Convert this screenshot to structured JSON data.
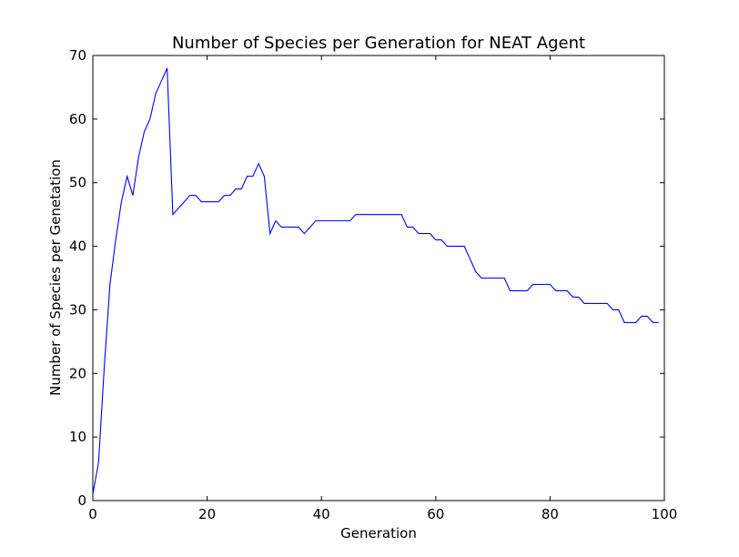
{
  "chart_data": {
    "type": "line",
    "title": "Number of Species per Generation for NEAT Agent",
    "xlabel": "Generation",
    "ylabel": "Number of Species per Genetation",
    "xlim": [
      0,
      100
    ],
    "ylim": [
      0,
      70
    ],
    "xticks": [
      0,
      20,
      40,
      60,
      80,
      100
    ],
    "yticks": [
      0,
      10,
      20,
      30,
      40,
      50,
      60,
      70
    ],
    "grid": false,
    "series": [
      {
        "color": "#0000ff",
        "x": [
          0,
          1,
          2,
          3,
          4,
          5,
          6,
          7,
          8,
          9,
          10,
          11,
          12,
          13,
          14,
          15,
          16,
          17,
          18,
          19,
          20,
          21,
          22,
          23,
          24,
          25,
          26,
          27,
          28,
          29,
          30,
          31,
          32,
          33,
          34,
          35,
          36,
          37,
          38,
          39,
          40,
          41,
          42,
          43,
          44,
          45,
          46,
          47,
          48,
          49,
          50,
          51,
          52,
          53,
          54,
          55,
          56,
          57,
          58,
          59,
          60,
          61,
          62,
          63,
          64,
          65,
          66,
          67,
          68,
          69,
          70,
          71,
          72,
          73,
          74,
          75,
          76,
          77,
          78,
          79,
          80,
          81,
          82,
          83,
          84,
          85,
          86,
          87,
          88,
          89,
          90,
          91,
          92,
          93,
          94,
          95,
          96,
          97,
          98,
          99
        ],
        "y": [
          1,
          6,
          21,
          34,
          41,
          47,
          51,
          48,
          54,
          58,
          60,
          64,
          66,
          68,
          45,
          46,
          47,
          48,
          48,
          47,
          47,
          47,
          47,
          48,
          48,
          49,
          49,
          51,
          51,
          53,
          51,
          42,
          44,
          43,
          43,
          43,
          43,
          42,
          43,
          44,
          44,
          44,
          44,
          44,
          44,
          44,
          45,
          45,
          45,
          45,
          45,
          45,
          45,
          45,
          45,
          43,
          43,
          42,
          42,
          42,
          41,
          41,
          40,
          40,
          40,
          40,
          38,
          36,
          35,
          35,
          35,
          35,
          35,
          33,
          33,
          33,
          33,
          34,
          34,
          34,
          34,
          33,
          33,
          33,
          32,
          32,
          31,
          31,
          31,
          31,
          31,
          30,
          30,
          28,
          28,
          28,
          29,
          29,
          28,
          28
        ]
      }
    ]
  }
}
